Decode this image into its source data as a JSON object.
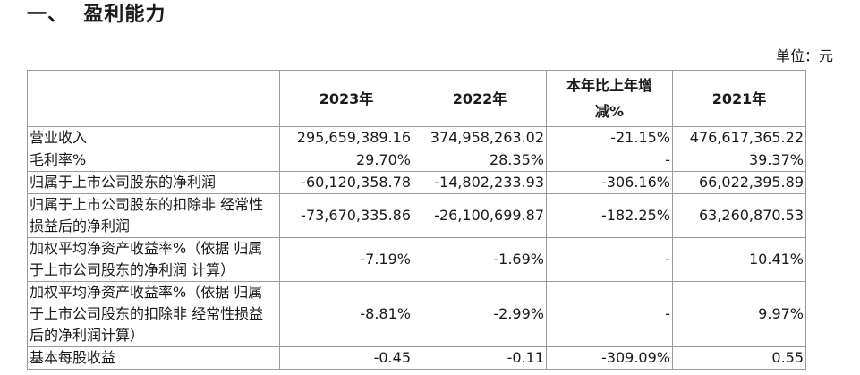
{
  "section_title": "一、  盈利能力",
  "unit_label": "单位：元",
  "table": {
    "headers": [
      "",
      "2023年",
      "2022年",
      "本年比上年增减%",
      "2021年"
    ],
    "rows": [
      {
        "label": "营业收入",
        "v2023": "295,659,389.16",
        "v2022": "374,958,263.02",
        "change": "-21.15%",
        "v2021": "476,617,365.22"
      },
      {
        "label": "毛利率%",
        "v2023": "29.70%",
        "v2022": "28.35%",
        "change": "-",
        "v2021": "39.37%"
      },
      {
        "label": "归属于上市公司股东的净利润",
        "v2023": "-60,120,358.78",
        "v2022": "-14,802,233.93",
        "change": "-306.16%",
        "v2021": "66,022,395.89"
      },
      {
        "label": "归属于上市公司股东的扣除非 经常性损益后的净利润",
        "v2023": "-73,670,335.86",
        "v2022": "-26,100,699.87",
        "change": "-182.25%",
        "v2021": "63,260,870.53"
      },
      {
        "label": "加权平均净资产收益率%（依据 归属于上市公司股东的净利润 计算）",
        "v2023": "-7.19%",
        "v2022": "-1.69%",
        "change": "-",
        "v2021": "10.41%"
      },
      {
        "label": "加权平均净资产收益率%（依据 归属于上市公司股东的扣除非 经常性损益后的净利润计算）",
        "v2023": "-8.81%",
        "v2022": "-2.99%",
        "change": "-",
        "v2021": "9.97%"
      },
      {
        "label": "基本每股收益",
        "v2023": "-0.45",
        "v2022": "-0.11",
        "change": "-309.09%",
        "v2021": "0.55"
      }
    ]
  }
}
